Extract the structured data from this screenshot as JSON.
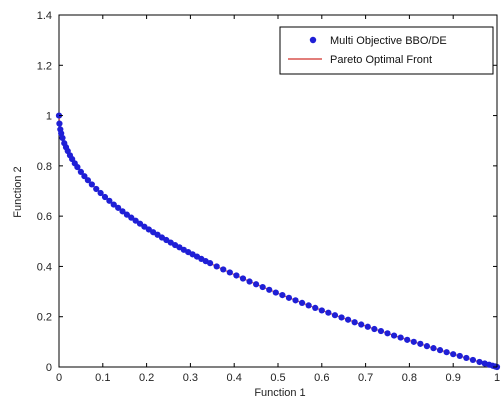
{
  "chart_data": {
    "type": "scatter",
    "title": "",
    "xlabel": "Function 1",
    "ylabel": "Function 2",
    "xlim": [
      0,
      1
    ],
    "ylim": [
      0,
      1.4
    ],
    "xticks": [
      "0",
      "0.1",
      "0.2",
      "0.3",
      "0.4",
      "0.5",
      "0.6",
      "0.7",
      "0.8",
      "0.9",
      "1"
    ],
    "yticks": [
      "0",
      "0.2",
      "0.4",
      "0.6",
      "0.8",
      "1",
      "1.2",
      "1.4"
    ],
    "grid": false,
    "legend_position": "top-right",
    "series": [
      {
        "name": "Multi Objective BBO/DE",
        "kind": "markers",
        "color": "#1f1fd6",
        "x": [
          0.0,
          0.001,
          0.003,
          0.005,
          0.008,
          0.012,
          0.016,
          0.02,
          0.025,
          0.03,
          0.036,
          0.042,
          0.05,
          0.058,
          0.066,
          0.075,
          0.085,
          0.095,
          0.105,
          0.115,
          0.125,
          0.135,
          0.145,
          0.155,
          0.165,
          0.175,
          0.185,
          0.195,
          0.205,
          0.215,
          0.225,
          0.235,
          0.245,
          0.255,
          0.265,
          0.275,
          0.285,
          0.295,
          0.305,
          0.315,
          0.325,
          0.335,
          0.345,
          0.36,
          0.375,
          0.39,
          0.405,
          0.42,
          0.435,
          0.45,
          0.465,
          0.48,
          0.495,
          0.51,
          0.525,
          0.54,
          0.555,
          0.57,
          0.585,
          0.6,
          0.615,
          0.63,
          0.645,
          0.66,
          0.675,
          0.69,
          0.705,
          0.72,
          0.735,
          0.75,
          0.765,
          0.78,
          0.795,
          0.81,
          0.825,
          0.84,
          0.855,
          0.87,
          0.885,
          0.9,
          0.915,
          0.93,
          0.945,
          0.96,
          0.972,
          0.982,
          0.99,
          0.996,
          1.0
        ],
        "y": [
          1.0,
          0.968,
          0.945,
          0.929,
          0.911,
          0.89,
          0.874,
          0.859,
          0.842,
          0.827,
          0.81,
          0.795,
          0.776,
          0.759,
          0.743,
          0.726,
          0.708,
          0.692,
          0.676,
          0.661,
          0.646,
          0.633,
          0.619,
          0.606,
          0.594,
          0.582,
          0.57,
          0.558,
          0.547,
          0.536,
          0.526,
          0.515,
          0.505,
          0.495,
          0.485,
          0.476,
          0.466,
          0.457,
          0.448,
          0.439,
          0.43,
          0.421,
          0.413,
          0.4,
          0.388,
          0.376,
          0.364,
          0.352,
          0.34,
          0.329,
          0.318,
          0.307,
          0.296,
          0.286,
          0.275,
          0.265,
          0.255,
          0.245,
          0.235,
          0.225,
          0.216,
          0.206,
          0.197,
          0.188,
          0.178,
          0.169,
          0.16,
          0.151,
          0.143,
          0.134,
          0.125,
          0.117,
          0.108,
          0.1,
          0.092,
          0.083,
          0.075,
          0.067,
          0.059,
          0.051,
          0.044,
          0.036,
          0.028,
          0.02,
          0.014,
          0.009,
          0.005,
          0.002,
          0.0
        ]
      },
      {
        "name": "Pareto Optimal Front",
        "kind": "line",
        "color": "#d9534f",
        "function": "1 - sqrt(x)"
      }
    ]
  }
}
